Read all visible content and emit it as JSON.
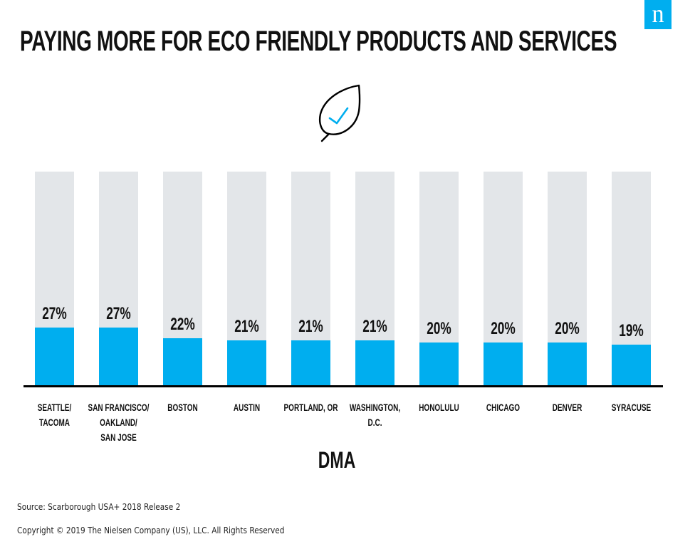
{
  "brand": {
    "logo_letter": "n",
    "accent_color": "#00aeef"
  },
  "icon": {
    "name": "leaf-checkmark-icon"
  },
  "chart_data": {
    "type": "bar",
    "title": "PAYING MORE FOR ECO FRIENDLY PRODUCTS AND SERVICES",
    "xlabel": "DMA",
    "ylabel": "",
    "ylim": [
      0,
      100
    ],
    "grid": false,
    "legend": "none",
    "categories": [
      "SEATTLE/\nTACOMA",
      "SAN FRANCISCO/\nOAKLAND/\nSAN JOSE",
      "BOSTON",
      "AUSTIN",
      "PORTLAND, OR",
      "WASHINGTON,\nD.C.",
      "HONOLULU",
      "CHICAGO",
      "DENVER",
      "SYRACUSE"
    ],
    "values": [
      27,
      27,
      22,
      21,
      21,
      21,
      20,
      20,
      20,
      19
    ],
    "value_labels": [
      "27%",
      "27%",
      "22%",
      "21%",
      "21%",
      "21%",
      "20%",
      "20%",
      "20%",
      "19%"
    ],
    "colors": {
      "bar": "#00aeef",
      "track": "#e3e6e9",
      "baseline": "#000000"
    }
  },
  "footer": {
    "source": "Source: Scarborough USA+ 2018 Release 2",
    "copyright": "Copyright © 2019 The Nielsen Company (US), LLC. All Rights Reserved"
  }
}
